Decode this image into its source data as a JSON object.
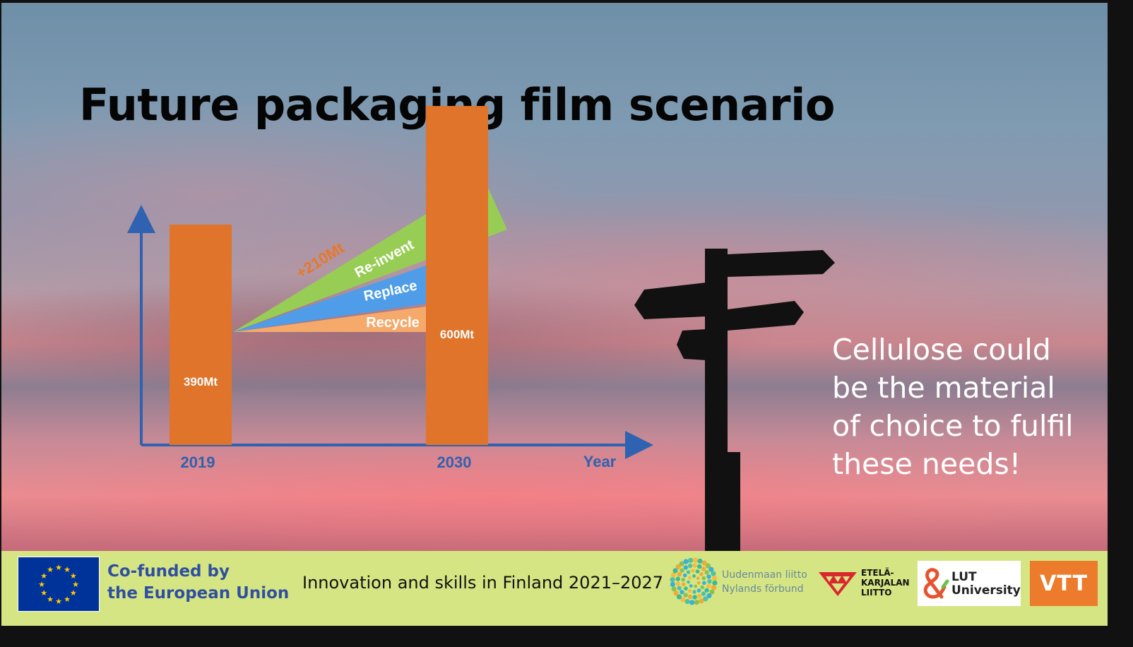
{
  "slide": {
    "title": "Future packaging film scenario",
    "caption": "Cellulose could be the material of choice to fulfil these needs!"
  },
  "chart_data": {
    "type": "bar",
    "categories": [
      "2019",
      "2030"
    ],
    "values": [
      390,
      600
    ],
    "bar_labels": [
      "390Mt",
      "600Mt"
    ],
    "x_axis_label": "Year",
    "bar_color": "#e0742a",
    "increase_label": "+210Mt",
    "growth_segments": [
      {
        "label": "Recycle",
        "color": "#f5a96a"
      },
      {
        "label": "Replace",
        "color": "#4f9de8"
      },
      {
        "label": "Re-invent",
        "color": "#98cd55"
      }
    ],
    "axis_color": "#2f62b0"
  },
  "footer": {
    "background": "#d5e584",
    "eu_line1": "Co-funded by",
    "eu_line2": "the European Union",
    "program": "Innovation and skills in Finland 2021–2027",
    "uusimaa_line1": "Uudenmaan liitto",
    "uusimaa_line2": "Nylands förbund",
    "ek_line1": "ETELÄ-",
    "ek_line2": "KARJALAN",
    "ek_line3": "LIITTO",
    "lut_line1": "LUT",
    "lut_line2": "University",
    "vtt": "VTT"
  }
}
